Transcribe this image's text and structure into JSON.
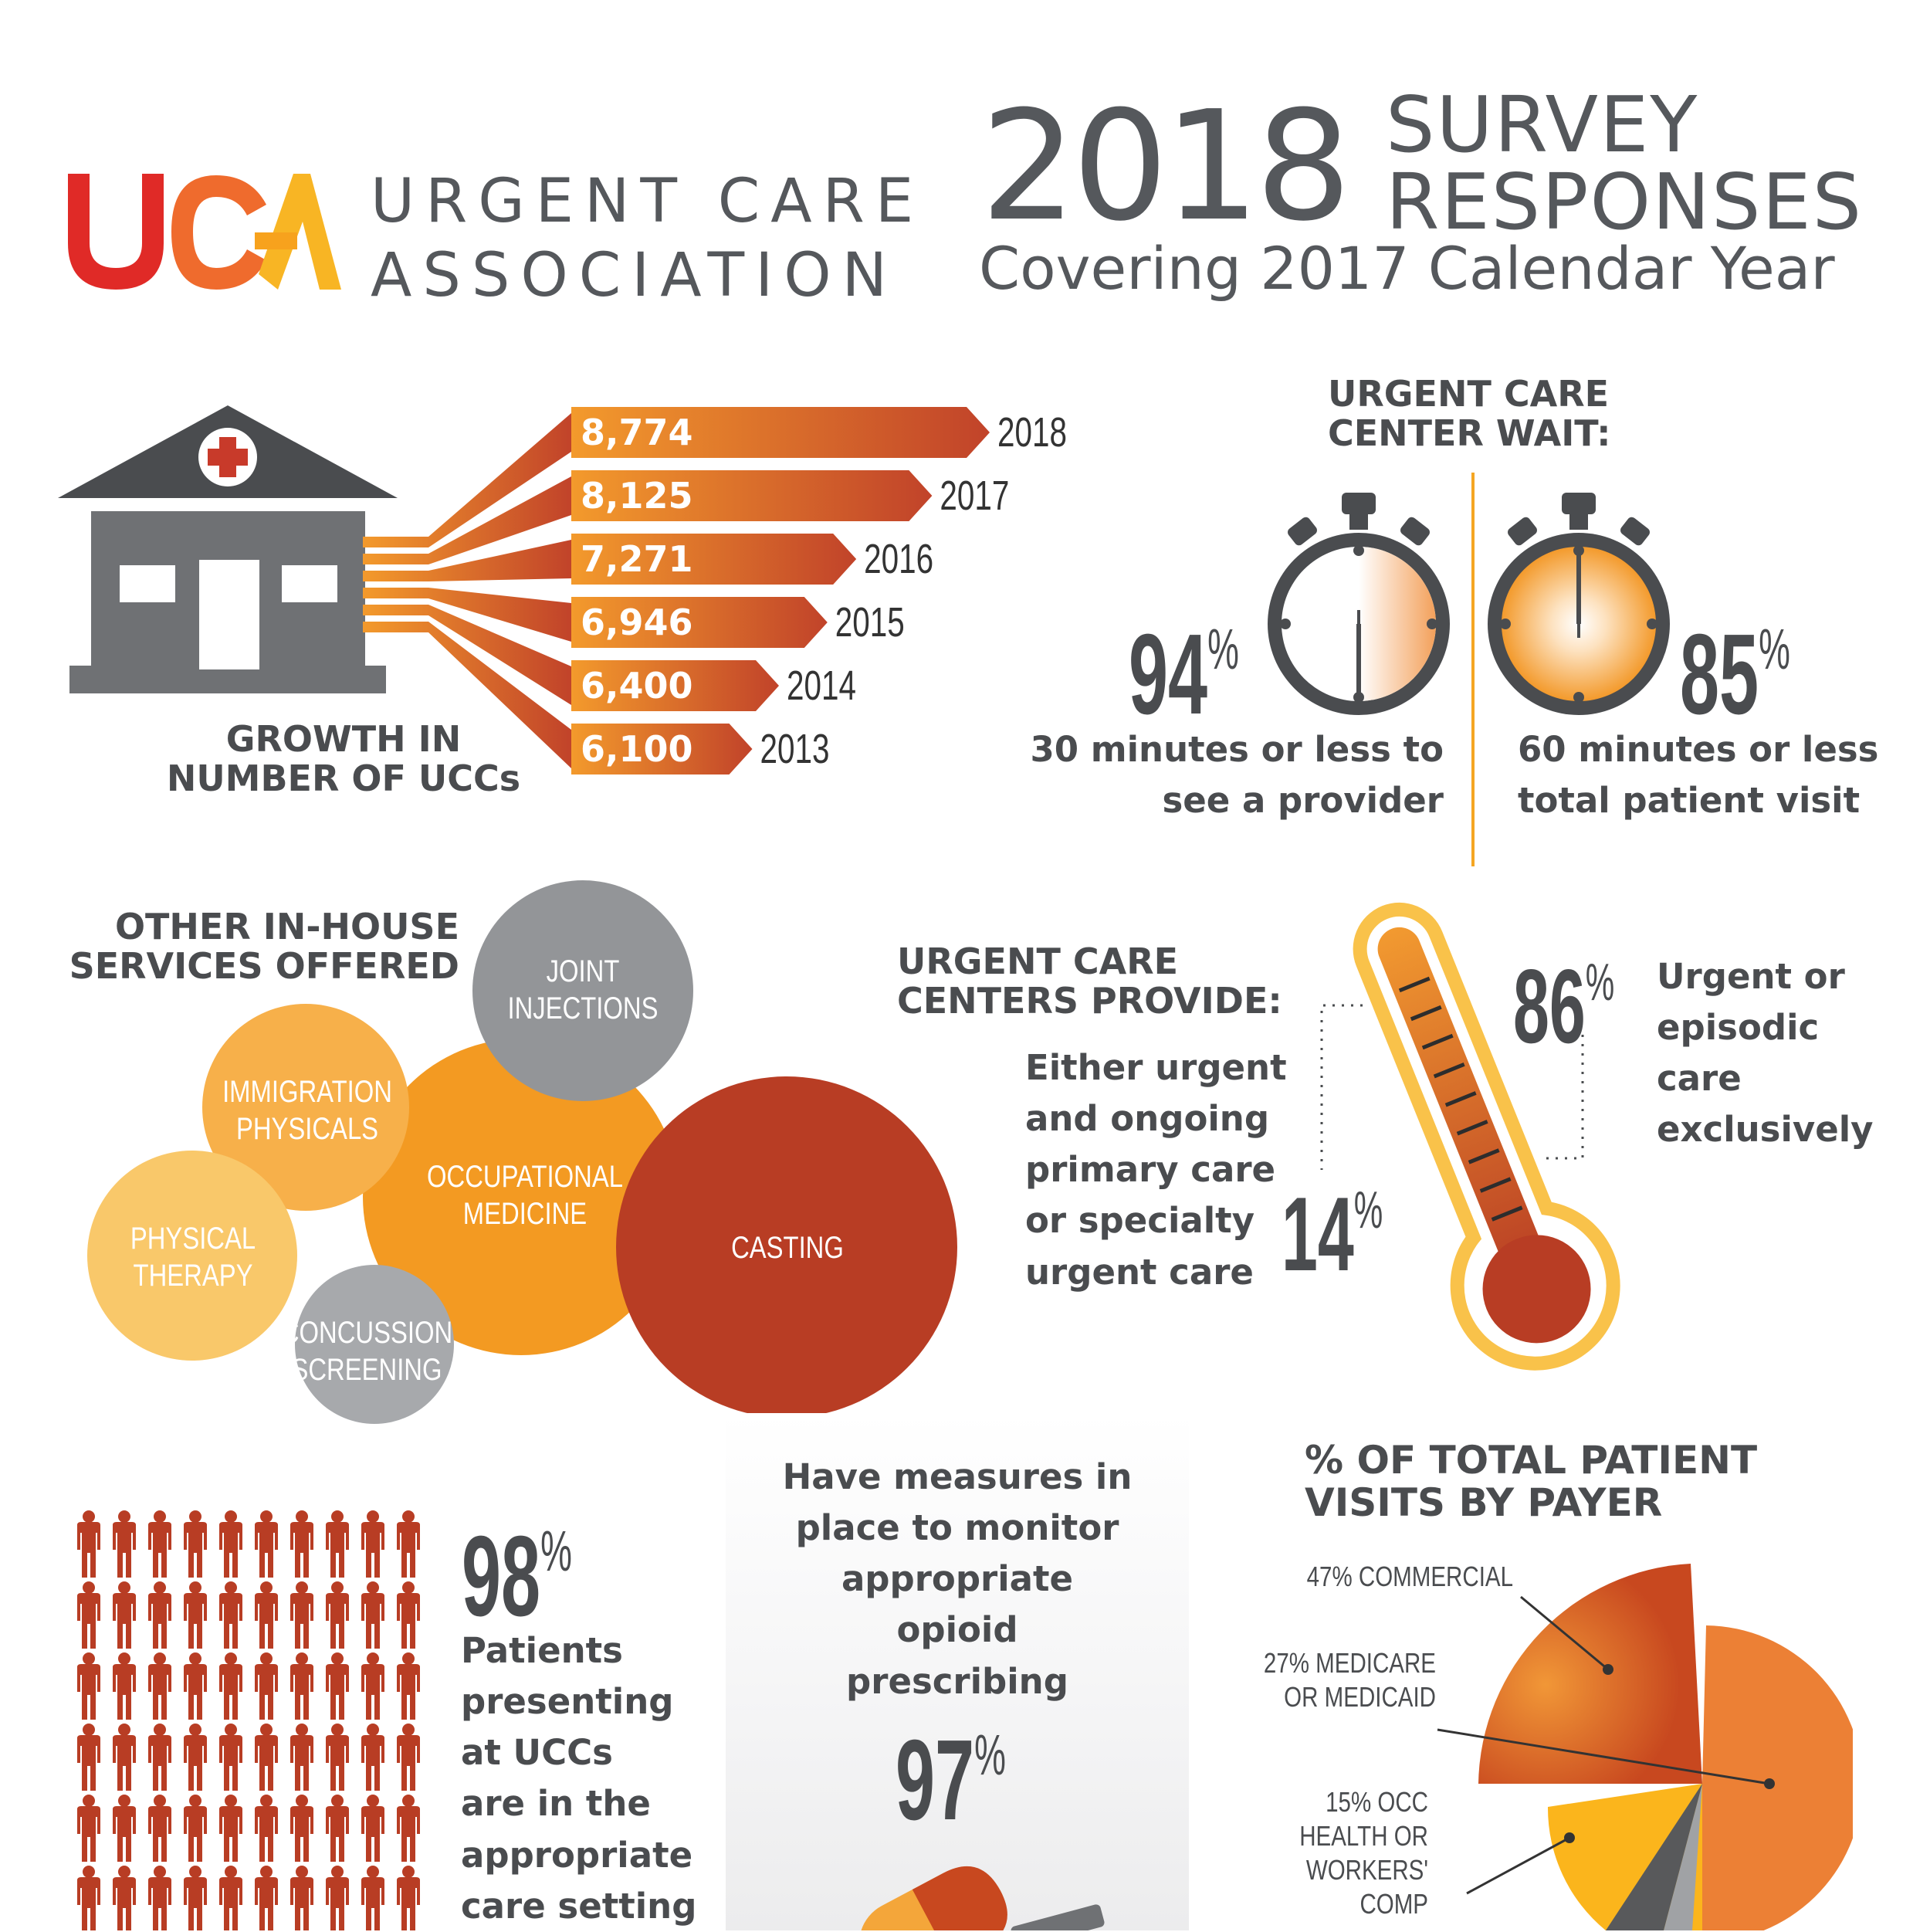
{
  "header": {
    "logo_mark": "UCA",
    "org_line1": "URGENT CARE",
    "org_line2": "ASSOCIATION",
    "year": "2018",
    "title_line1": "SURVEY",
    "title_line2": "RESPONSES",
    "subtitle": "Covering 2017 Calendar Year"
  },
  "growth": {
    "label_line1": "GROWTH IN",
    "label_line2": "NUMBER OF UCCs",
    "colors": {
      "bar_start": "#f39a2c",
      "bar_end": "#c1432a",
      "building": "#6f7174",
      "roof": "#4a4c4f",
      "cross": "#c83a2a"
    }
  },
  "chart_data": {
    "type": "bar",
    "orientation": "horizontal",
    "categories": [
      "2018",
      "2017",
      "2016",
      "2015",
      "2014",
      "2013"
    ],
    "values": [
      8774,
      8125,
      7271,
      6946,
      6400,
      6100
    ],
    "value_labels": [
      "8,774",
      "8,125",
      "7,271",
      "6,946",
      "6,400",
      "6,100"
    ],
    "title": "GROWTH IN NUMBER OF UCCs"
  },
  "wait": {
    "title_line1": "URGENT CARE",
    "title_line2": "CENTER WAIT:",
    "left": {
      "value": "94",
      "unit": "%",
      "fraction": 0.94,
      "line1": "30 minutes or less to",
      "line2": "see a provider"
    },
    "right": {
      "value": "85",
      "unit": "%",
      "fraction": 0.85,
      "line1": "60 minutes or less",
      "line2": "total patient visit"
    }
  },
  "services": {
    "title_line1": "OTHER IN-HOUSE",
    "title_line2": "SERVICES OFFERED",
    "bubbles": [
      {
        "line1": "JOINT",
        "line2": "INJECTIONS",
        "color": "#939598"
      },
      {
        "line1": "IMMIGRATION",
        "line2": "PHYSICALS",
        "color": "#f7b04a"
      },
      {
        "line1": "OCCUPATIONAL",
        "line2": "MEDICINE",
        "color": "#f39a22"
      },
      {
        "line1": "PHYSICAL",
        "line2": "THERAPY",
        "color": "#f9c86a"
      },
      {
        "line1": "CONCUSSION",
        "line2": "SCREENING",
        "color": "#a7a9ac"
      },
      {
        "line1": "",
        "line2": "CASTING",
        "color": "#b83d24"
      }
    ]
  },
  "provide": {
    "title_line1": "URGENT CARE",
    "title_line2": "CENTERS PROVIDE:",
    "left_value": "14",
    "left_unit": "%",
    "left_lines": [
      "Either urgent",
      "and ongoing",
      "primary care",
      "or specialty",
      "urgent care"
    ],
    "right_value": "86",
    "right_unit": "%",
    "right_lines": [
      "Urgent or",
      "episodic",
      "care",
      "exclusively"
    ]
  },
  "patients": {
    "value": "98",
    "unit": "%",
    "lines": [
      "Patients",
      "presenting",
      "at UCCs",
      "are in the",
      "appropriate",
      "care setting"
    ],
    "icon_color": "#b83d24"
  },
  "opioid": {
    "lines": [
      "Have measures in",
      "place to monitor",
      "appropriate",
      "opioid",
      "prescribing"
    ],
    "value": "97",
    "unit": "%"
  },
  "payer": {
    "title_line1": "% OF TOTAL PATIENT",
    "title_line2": "VISITS BY PAYER",
    "slices": [
      {
        "line1": "47% COMMERCIAL",
        "line2": "",
        "value": 47,
        "color": "#c8481f"
      },
      {
        "line1": "27% MEDICARE",
        "line2": "OR MEDICAID",
        "value": 27,
        "color": "#ec8035"
      },
      {
        "line1": "15% OCC",
        "line2": "HEALTH OR",
        "line3": "WORKERS'",
        "line4": "COMP",
        "value": 15,
        "color": "#fbb51c"
      }
    ]
  }
}
